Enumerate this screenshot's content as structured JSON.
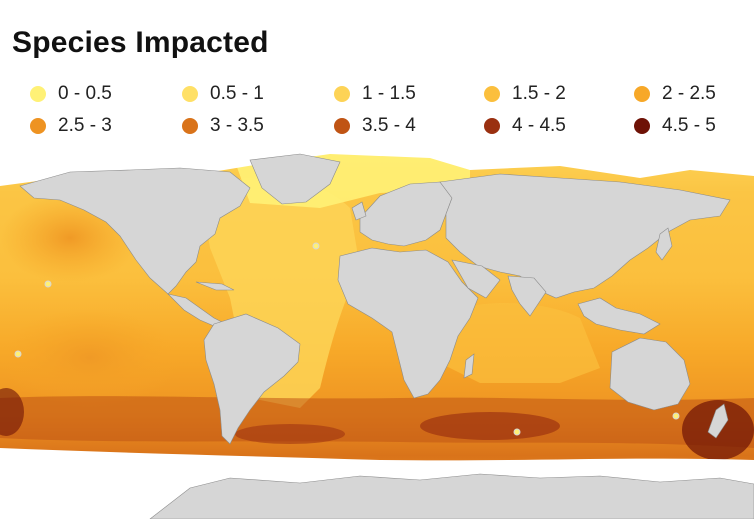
{
  "title": "Species Impacted",
  "legend": [
    {
      "label": "0 - 0.5",
      "color": "#fff176"
    },
    {
      "label": "0.5 - 1",
      "color": "#ffe066"
    },
    {
      "label": "1 - 1.5",
      "color": "#fdd356"
    },
    {
      "label": "1.5 - 2",
      "color": "#fbbf3d"
    },
    {
      "label": "2 - 2.5",
      "color": "#f7a828"
    },
    {
      "label": "2.5 - 3",
      "color": "#ee9322"
    },
    {
      "label": "3 - 3.5",
      "color": "#d9731a"
    },
    {
      "label": "3.5 - 4",
      "color": "#c05414"
    },
    {
      "label": "4 - 4.5",
      "color": "#9a3010"
    },
    {
      "label": "4.5 - 5",
      "color": "#6e1206"
    }
  ],
  "map": {
    "land_color": "#d6d6d6",
    "land_border_color": "#8c8c8c",
    "ice_color": "#ffffff"
  }
}
